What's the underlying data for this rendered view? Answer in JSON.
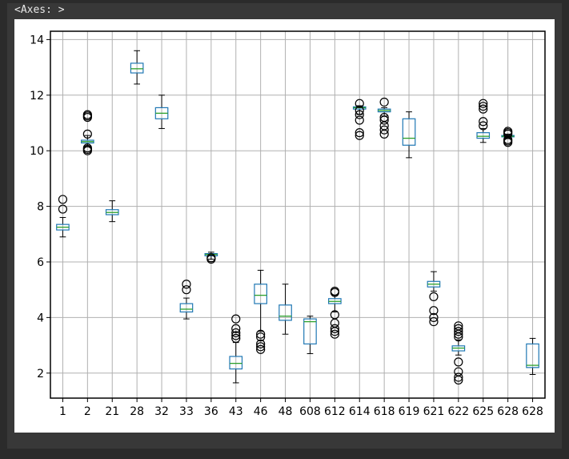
{
  "header": {
    "repr": "<Axes: >"
  },
  "chart_data": {
    "type": "boxplot",
    "title": "",
    "xlabel": "",
    "ylabel": "",
    "ylim": [
      1.1,
      14.3
    ],
    "yticks": [
      2,
      4,
      6,
      8,
      10,
      12,
      14
    ],
    "grid": true,
    "colors": {
      "box": "#1f77b4",
      "median": "#2ca02c",
      "whisker": "#000000",
      "flier": "#000000",
      "grid": "#b0b0b0"
    },
    "categories": [
      "1",
      "2",
      "21",
      "28",
      "32",
      "33",
      "36",
      "43",
      "46",
      "48",
      "608",
      "612",
      "614",
      "618",
      "619",
      "621",
      "622",
      "625",
      "628",
      "628"
    ],
    "boxes": [
      {
        "label": "1",
        "whislo": 6.9,
        "q1": 7.15,
        "med": 7.25,
        "q3": 7.35,
        "whishi": 7.6,
        "fliers": [
          7.9,
          8.25
        ]
      },
      {
        "label": "2",
        "whislo": 10.15,
        "q1": 10.28,
        "med": 10.33,
        "q3": 10.38,
        "whishi": 10.55,
        "fliers": [
          10.0,
          10.05,
          10.1,
          10.6,
          11.2,
          11.25,
          11.3
        ]
      },
      {
        "label": "21",
        "whislo": 7.45,
        "q1": 7.7,
        "med": 7.78,
        "q3": 7.88,
        "whishi": 8.2,
        "fliers": []
      },
      {
        "label": "28",
        "whislo": 12.4,
        "q1": 12.8,
        "med": 12.95,
        "q3": 13.15,
        "whishi": 13.6,
        "fliers": []
      },
      {
        "label": "32",
        "whislo": 10.8,
        "q1": 11.15,
        "med": 11.35,
        "q3": 11.55,
        "whishi": 12.0,
        "fliers": []
      },
      {
        "label": "33",
        "whislo": 3.95,
        "q1": 4.2,
        "med": 4.3,
        "q3": 4.5,
        "whishi": 4.7,
        "fliers": [
          5.0,
          5.2
        ]
      },
      {
        "label": "36",
        "whislo": 6.1,
        "q1": 6.22,
        "med": 6.27,
        "q3": 6.3,
        "whishi": 6.35,
        "fliers": [
          6.1,
          6.15
        ]
      },
      {
        "label": "43",
        "whislo": 1.65,
        "q1": 2.15,
        "med": 2.35,
        "q3": 2.6,
        "whishi": 3.1,
        "fliers": [
          3.25,
          3.35,
          3.45,
          3.6,
          3.95
        ]
      },
      {
        "label": "46",
        "whislo": 3.5,
        "q1": 4.5,
        "med": 4.8,
        "q3": 5.2,
        "whishi": 5.7,
        "fliers": [
          2.85,
          2.95,
          3.05,
          3.3,
          3.4
        ]
      },
      {
        "label": "48",
        "whislo": 3.4,
        "q1": 3.9,
        "med": 4.05,
        "q3": 4.45,
        "whishi": 5.2,
        "fliers": []
      },
      {
        "label": "608",
        "whislo": 2.7,
        "q1": 3.05,
        "med": 3.85,
        "q3": 3.95,
        "whishi": 4.05,
        "fliers": []
      },
      {
        "label": "612",
        "whislo": 4.2,
        "q1": 4.5,
        "med": 4.58,
        "q3": 4.68,
        "whishi": 4.8,
        "fliers": [
          3.4,
          3.5,
          3.6,
          3.8,
          4.1,
          4.9,
          4.95
        ]
      },
      {
        "label": "614",
        "whislo": 11.3,
        "q1": 11.5,
        "med": 11.55,
        "q3": 11.58,
        "whishi": 11.62,
        "fliers": [
          10.55,
          10.65,
          11.1,
          11.3,
          11.45,
          11.7
        ]
      },
      {
        "label": "618",
        "whislo": 11.25,
        "q1": 11.4,
        "med": 11.45,
        "q3": 11.5,
        "whishi": 11.55,
        "fliers": [
          10.6,
          10.75,
          10.9,
          11.1,
          11.2,
          11.75
        ]
      },
      {
        "label": "619",
        "whislo": 9.75,
        "q1": 10.2,
        "med": 10.45,
        "q3": 11.15,
        "whishi": 11.4,
        "fliers": []
      },
      {
        "label": "621",
        "whislo": 4.95,
        "q1": 5.1,
        "med": 5.2,
        "q3": 5.3,
        "whishi": 5.65,
        "fliers": [
          3.85,
          4.0,
          4.25,
          4.75
        ]
      },
      {
        "label": "622",
        "whislo": 2.65,
        "q1": 2.8,
        "med": 2.9,
        "q3": 2.98,
        "whishi": 3.2,
        "fliers": [
          1.75,
          1.85,
          2.05,
          2.4,
          3.3,
          3.4,
          3.5,
          3.6,
          3.7
        ]
      },
      {
        "label": "625",
        "whislo": 10.3,
        "q1": 10.45,
        "med": 10.52,
        "q3": 10.65,
        "whishi": 10.8,
        "fliers": [
          10.9,
          11.05,
          11.5,
          11.6,
          11.7
        ]
      },
      {
        "label": "628",
        "whislo": 10.45,
        "q1": 10.5,
        "med": 10.52,
        "q3": 10.55,
        "whishi": 10.6,
        "fliers": [
          10.3,
          10.35,
          10.4,
          10.6,
          10.65,
          10.7
        ]
      },
      {
        "label": "628",
        "whislo": 1.95,
        "q1": 2.2,
        "med": 2.28,
        "q3": 3.05,
        "whishi": 3.25,
        "fliers": []
      }
    ]
  }
}
